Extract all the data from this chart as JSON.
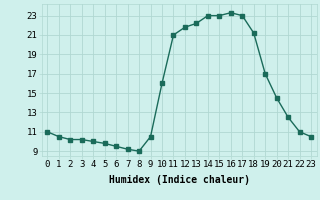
{
  "x": [
    0,
    1,
    2,
    3,
    4,
    5,
    6,
    7,
    8,
    9,
    10,
    11,
    12,
    13,
    14,
    15,
    16,
    17,
    18,
    19,
    20,
    21,
    22,
    23
  ],
  "y": [
    11.0,
    10.5,
    10.2,
    10.2,
    10.0,
    9.8,
    9.5,
    9.2,
    9.0,
    10.5,
    16.0,
    21.0,
    21.8,
    22.2,
    23.0,
    23.0,
    23.3,
    23.0,
    21.2,
    17.0,
    14.5,
    12.5,
    11.0,
    10.5
  ],
  "line_color": "#1a6b5a",
  "marker": "s",
  "marker_size": 2.2,
  "bg_color": "#cff0ec",
  "grid_color": "#b0d8d2",
  "xlabel": "Humidex (Indice chaleur)",
  "xlim": [
    -0.5,
    23.5
  ],
  "ylim": [
    8.5,
    24.2
  ],
  "xticks": [
    0,
    1,
    2,
    3,
    4,
    5,
    6,
    7,
    8,
    9,
    10,
    11,
    12,
    13,
    14,
    15,
    16,
    17,
    18,
    19,
    20,
    21,
    22,
    23
  ],
  "yticks": [
    9,
    11,
    13,
    15,
    17,
    19,
    21,
    23
  ],
  "xlabel_fontsize": 7,
  "tick_fontsize": 6.5,
  "linewidth": 1.0
}
